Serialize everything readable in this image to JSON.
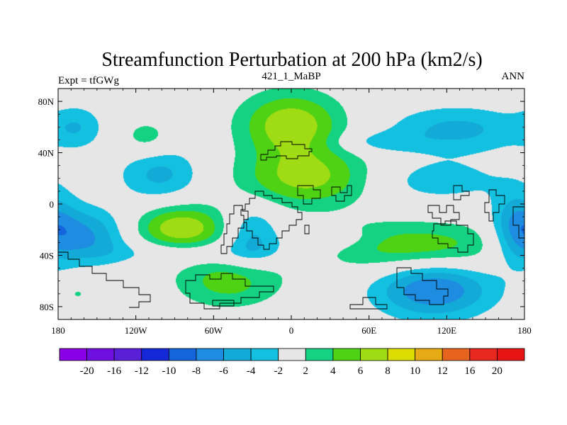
{
  "chart_data": {
    "type": "contour-map",
    "title": "Streamfunction Perturbation at 200 hPa (km2/s)",
    "left_string": "Expt = tfGWg",
    "center_string": "421_1_MaBP",
    "right_string": "ANN",
    "x_ticks": [
      {
        "value": -180,
        "label": "180"
      },
      {
        "value": -120,
        "label": "120W"
      },
      {
        "value": -60,
        "label": "60W"
      },
      {
        "value": 0,
        "label": "0"
      },
      {
        "value": 60,
        "label": "60E"
      },
      {
        "value": 120,
        "label": "120E"
      },
      {
        "value": 180,
        "label": "180"
      }
    ],
    "y_ticks": [
      {
        "value": 80,
        "label": "80N"
      },
      {
        "value": 40,
        "label": "40N"
      },
      {
        "value": 0,
        "label": "0"
      },
      {
        "value": -40,
        "label": "40S"
      },
      {
        "value": -80,
        "label": "80S"
      }
    ],
    "xlim": [
      -180,
      180
    ],
    "ylim": [
      -90,
      90
    ],
    "contour_levels": [
      -20,
      -16,
      -12,
      -10,
      -8,
      -6,
      -4,
      -2,
      2,
      4,
      6,
      8,
      10,
      12,
      16,
      20
    ],
    "level_labels": [
      "-20",
      "-16",
      "-12",
      "-10",
      "-8",
      "-6",
      "-4",
      "-2",
      "2",
      "4",
      "6",
      "8",
      "10",
      "12",
      "16",
      "20"
    ],
    "colorbar_colors": [
      "#8a00e6",
      "#7010e0",
      "#5a20d8",
      "#1428d8",
      "#1464dc",
      "#1e8ce0",
      "#14aad8",
      "#14c0e0",
      "#e6e6e6",
      "#14d282",
      "#50d214",
      "#a0dc14",
      "#dcdc00",
      "#e6aa14",
      "#e6641e",
      "#e6281e",
      "#e61414"
    ],
    "anomalies": [
      {
        "lon": 0,
        "lat": 62,
        "rx": 28,
        "ry": 18,
        "peak": 7.6
      },
      {
        "lon": -112,
        "lat": 52,
        "rx": 14,
        "ry": 10,
        "peak": 3.2
      },
      {
        "lon": -165,
        "lat": 60,
        "rx": 14,
        "ry": 12,
        "peak": -3.2
      },
      {
        "lon": 128,
        "lat": 58,
        "rx": 38,
        "ry": 13,
        "peak": -4.6
      },
      {
        "lon": 65,
        "lat": 48,
        "rx": 24,
        "ry": 6,
        "peak": -2.8
      },
      {
        "lon": -101,
        "lat": 23,
        "rx": 22,
        "ry": 15,
        "peak": -4.6
      },
      {
        "lon": 14,
        "lat": 20,
        "rx": 38,
        "ry": 16,
        "peak": 6.8
      },
      {
        "lon": 108,
        "lat": 18,
        "rx": 42,
        "ry": 12,
        "peak": -3.2
      },
      {
        "lon": -85,
        "lat": -19,
        "rx": 25,
        "ry": 13,
        "peak": 7.8
      },
      {
        "lon": -30,
        "lat": -24,
        "rx": 15,
        "ry": 16,
        "peak": -4.8
      },
      {
        "lon": -158,
        "lat": -25,
        "rx": 22,
        "ry": 15,
        "peak": -6.5
      },
      {
        "lon": -70,
        "lat": -38,
        "rx": 60,
        "ry": 7,
        "peak": -3.0
      },
      {
        "lon": 174,
        "lat": -19,
        "rx": 14,
        "ry": 20,
        "peak": -6.0
      },
      {
        "lon": 95,
        "lat": -34,
        "rx": 55,
        "ry": 14,
        "peak": 5.8
      },
      {
        "lon": 30,
        "lat": -27,
        "rx": 24,
        "ry": 6,
        "peak": -2.7
      },
      {
        "lon": 110,
        "lat": -66,
        "rx": 32,
        "ry": 16,
        "peak": -8.2
      },
      {
        "lon": -48,
        "lat": -60,
        "rx": 30,
        "ry": 15,
        "peak": 5.0
      },
      {
        "lon": -165,
        "lat": -70,
        "rx": 6,
        "ry": 4,
        "peak": 2.5
      },
      {
        "lon": 178,
        "lat": -69,
        "rx": 5,
        "ry": 4,
        "peak": 2.5
      }
    ]
  }
}
